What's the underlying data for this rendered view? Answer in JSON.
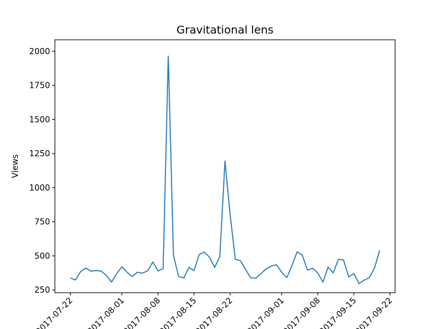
{
  "chart_data": {
    "type": "line",
    "title": "Gravitational lens",
    "xlabel": "",
    "ylabel": "Views",
    "ylim": [
      230,
      2085
    ],
    "xlim": [
      "2017-07-19",
      "2017-09-23"
    ],
    "grid": false,
    "line_color": "#1f77b4",
    "y_ticks": [
      250,
      500,
      750,
      1000,
      1250,
      1500,
      1750,
      2000
    ],
    "x_ticks": [
      "2017-07-22",
      "2017-08-01",
      "2017-08-08",
      "2017-08-15",
      "2017-08-22",
      "2017-09-01",
      "2017-09-08",
      "2017-09-15",
      "2017-09-22"
    ],
    "series": [
      {
        "x": [
          "2017-07-22",
          "2017-07-23",
          "2017-07-24",
          "2017-07-25",
          "2017-07-26",
          "2017-07-27",
          "2017-07-28",
          "2017-07-29",
          "2017-07-30",
          "2017-07-31",
          "2017-08-01",
          "2017-08-02",
          "2017-08-03",
          "2017-08-04",
          "2017-08-05",
          "2017-08-06",
          "2017-08-07",
          "2017-08-08",
          "2017-08-09",
          "2017-08-10",
          "2017-08-11",
          "2017-08-12",
          "2017-08-13",
          "2017-08-14",
          "2017-08-15",
          "2017-08-16",
          "2017-08-17",
          "2017-08-18",
          "2017-08-19",
          "2017-08-20",
          "2017-08-21",
          "2017-08-22",
          "2017-08-23",
          "2017-08-24",
          "2017-08-25",
          "2017-08-26",
          "2017-08-27",
          "2017-08-28",
          "2017-08-29",
          "2017-08-30",
          "2017-08-31",
          "2017-09-01",
          "2017-09-02",
          "2017-09-03",
          "2017-09-04",
          "2017-09-05",
          "2017-09-06",
          "2017-09-07",
          "2017-09-08",
          "2017-09-09",
          "2017-09-10",
          "2017-09-11",
          "2017-09-12",
          "2017-09-13",
          "2017-09-14",
          "2017-09-15",
          "2017-09-16",
          "2017-09-17",
          "2017-09-18",
          "2017-09-19",
          "2017-09-20"
        ],
        "values": [
          338,
          323,
          385,
          410,
          388,
          393,
          388,
          356,
          308,
          370,
          420,
          380,
          348,
          380,
          373,
          390,
          455,
          390,
          405,
          1965,
          505,
          350,
          337,
          415,
          393,
          510,
          528,
          490,
          415,
          495,
          1195,
          800,
          475,
          465,
          400,
          338,
          337,
          370,
          405,
          425,
          435,
          380,
          340,
          430,
          530,
          505,
          395,
          410,
          375,
          307,
          418,
          375,
          475,
          470,
          345,
          370,
          297,
          322,
          340,
          410,
          540
        ]
      }
    ]
  }
}
